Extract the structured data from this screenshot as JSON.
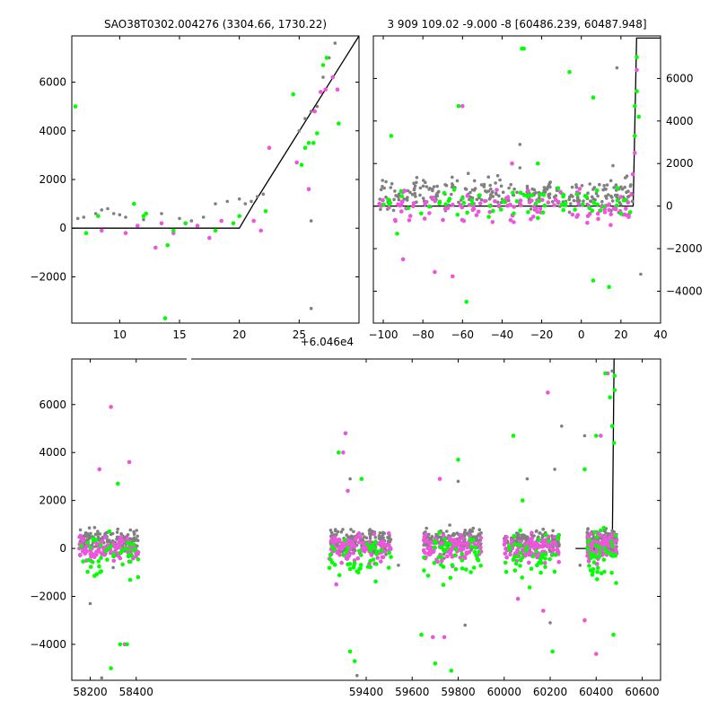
{
  "colors": {
    "green": "#00ff00",
    "magenta": "#ee55dd",
    "gray": "#808080",
    "model": "#000000"
  },
  "chart_data": [
    {
      "id": "top-left",
      "type": "scatter",
      "title": "SAO38T0302.004276 (3304.66, 1730.22)",
      "xlim": [
        6,
        30
      ],
      "ylim": [
        -3900,
        7900
      ],
      "xticks": [
        10,
        15,
        20,
        25
      ],
      "yticks": [
        -2000,
        0,
        2000,
        4000,
        6000
      ],
      "ytick_side": "left",
      "grid": false,
      "model_line": {
        "x": [
          6,
          20,
          21.2,
          30
        ],
        "y": [
          0,
          0,
          1000,
          7900
        ]
      },
      "series": [
        {
          "color": "gray",
          "points": [
            [
              6.5,
              400
            ],
            [
              7,
              450
            ],
            [
              8,
              600
            ],
            [
              8.5,
              750
            ],
            [
              9,
              800
            ],
            [
              9.5,
              600
            ],
            [
              10,
              550
            ],
            [
              10.5,
              450
            ],
            [
              12,
              350
            ],
            [
              13.5,
              600
            ],
            [
              15,
              400
            ],
            [
              16,
              300
            ],
            [
              17,
              450
            ],
            [
              18,
              1000
            ],
            [
              19,
              1100
            ],
            [
              20,
              1200
            ],
            [
              20.5,
              1000
            ],
            [
              21,
              1100
            ],
            [
              21.5,
              1300
            ],
            [
              22,
              1400
            ],
            [
              25,
              4000
            ],
            [
              25.5,
              4500
            ],
            [
              26,
              4800
            ],
            [
              26.5,
              5000
            ],
            [
              27,
              6200
            ],
            [
              27.5,
              7000
            ],
            [
              28,
              7600
            ],
            [
              26,
              -3300
            ],
            [
              26,
              300
            ]
          ]
        },
        {
          "color": "green",
          "points": [
            [
              6.3,
              5000
            ],
            [
              7.2,
              -200
            ],
            [
              8.2,
              500
            ],
            [
              11.2,
              1000
            ],
            [
              12,
              500
            ],
            [
              12.2,
              600
            ],
            [
              13.8,
              -3700
            ],
            [
              14,
              -700
            ],
            [
              14.5,
              -100
            ],
            [
              15.5,
              200
            ],
            [
              18,
              -100
            ],
            [
              19.5,
              200
            ],
            [
              20,
              500
            ],
            [
              22.2,
              700
            ],
            [
              24.5,
              5500
            ],
            [
              25.2,
              2600
            ],
            [
              25.5,
              3300
            ],
            [
              25.8,
              3500
            ],
            [
              26.2,
              3500
            ],
            [
              26.5,
              3900
            ],
            [
              27,
              6700
            ],
            [
              27.3,
              7000
            ],
            [
              28.3,
              4300
            ]
          ]
        },
        {
          "color": "magenta",
          "points": [
            [
              8.5,
              -100
            ],
            [
              10.5,
              -200
            ],
            [
              11.5,
              100
            ],
            [
              13,
              -800
            ],
            [
              13.5,
              200
            ],
            [
              14.5,
              -200
            ],
            [
              15.5,
              200
            ],
            [
              16.5,
              100
            ],
            [
              17.5,
              -400
            ],
            [
              18.5,
              300
            ],
            [
              21.2,
              300
            ],
            [
              21.8,
              -100
            ],
            [
              22.5,
              3300
            ],
            [
              24.8,
              2700
            ],
            [
              25.8,
              1600
            ],
            [
              26.3,
              4800
            ],
            [
              26.8,
              5600
            ],
            [
              27.2,
              5700
            ],
            [
              27.8,
              6200
            ],
            [
              28.2,
              5700
            ]
          ]
        }
      ]
    },
    {
      "id": "top-right",
      "type": "scatter",
      "title": "3 909 109.02 -9.000 -8 [60486.239, 60487.948]",
      "xlim": [
        60355,
        60500
      ],
      "ylim": [
        -5500,
        8000
      ],
      "xticks": [
        60360,
        60380,
        60400,
        60420,
        60440,
        60460,
        60480,
        60500
      ],
      "xtick_offset_label": "+6.046e4",
      "yticks": [
        -4000,
        -2000,
        0,
        2000,
        4000,
        6000
      ],
      "ytick_side": "right",
      "grid": false,
      "model_line": {
        "x": [
          60355,
          60486.2,
          60487.9,
          60500
        ],
        "y": [
          0,
          0,
          7900,
          7900
        ]
      },
      "series": [
        {
          "color": "gray",
          "band": {
            "xmin": 60358,
            "xmax": 60486,
            "ymean": 600,
            "spread": 500,
            "n": 260
          },
          "points": [
            [
              60429,
              2900
            ],
            [
              60429,
              1800
            ],
            [
              60476,
              1900
            ],
            [
              60490,
              -3200
            ],
            [
              60478,
              6500
            ],
            [
              60480,
              900
            ],
            [
              60485,
              1000
            ]
          ]
        },
        {
          "color": "green",
          "band": {
            "xmin": 60358,
            "xmax": 60486,
            "ymean": 200,
            "spread": 500,
            "n": 70
          },
          "points": [
            [
              60364,
              3300
            ],
            [
              60367,
              -1300
            ],
            [
              60369,
              700
            ],
            [
              60398,
              4700
            ],
            [
              60402,
              -4500
            ],
            [
              60430,
              7400
            ],
            [
              60431,
              7400
            ],
            [
              60438,
              2000
            ],
            [
              60454,
              6300
            ],
            [
              60466,
              5100
            ],
            [
              60466,
              -3500
            ],
            [
              60474,
              -3800
            ],
            [
              60487,
              4700
            ],
            [
              60488,
              7000
            ],
            [
              60489,
              4200
            ],
            [
              60488,
              5400
            ],
            [
              60487,
              3300
            ]
          ]
        },
        {
          "color": "magenta",
          "band": {
            "xmin": 60358,
            "xmax": 60486,
            "ymean": -100,
            "spread": 550,
            "n": 120
          },
          "points": [
            [
              60370,
              -2500
            ],
            [
              60386,
              -3100
            ],
            [
              60395,
              -3300
            ],
            [
              60400,
              4700
            ],
            [
              60425,
              2000
            ],
            [
              60486,
              1500
            ],
            [
              60488,
              6400
            ],
            [
              60487,
              2500
            ]
          ]
        }
      ]
    },
    {
      "id": "bottom",
      "type": "scatter",
      "title": "",
      "xlim": [
        58120,
        60680
      ],
      "ylim": [
        -5500,
        7900
      ],
      "xticks": [
        58200,
        58400,
        59400,
        59600,
        59800,
        60000,
        60200,
        60400,
        60600
      ],
      "yticks": [
        -4000,
        -2000,
        0,
        2000,
        4000,
        6000
      ],
      "ytick_side": "left",
      "grid": false,
      "axis_break": [
        58445,
        59200
      ],
      "model_line": {
        "x": [
          60310,
          60470,
          60478,
          60482
        ],
        "y": [
          0,
          0,
          7900,
          7900
        ]
      },
      "seasons": [
        [
          58150,
          58410
        ],
        [
          59240,
          59510
        ],
        [
          59650,
          59900
        ],
        [
          60000,
          60240
        ],
        [
          60360,
          60490
        ]
      ],
      "series": [
        {
          "color": "gray",
          "ymean": 300,
          "spread": 350,
          "per_season": 170,
          "points": [
            [
              58200,
              -2300
            ],
            [
              58250,
              -5400
            ],
            [
              58300,
              -800
            ],
            [
              59330,
              2900
            ],
            [
              59360,
              -5300
            ],
            [
              59540,
              -700
            ],
            [
              59800,
              2800
            ],
            [
              59830,
              -3200
            ],
            [
              60100,
              2900
            ],
            [
              60200,
              -3100
            ],
            [
              60220,
              3300
            ],
            [
              60250,
              5100
            ],
            [
              60330,
              -700
            ],
            [
              60350,
              4700
            ],
            [
              60470,
              7400
            ]
          ]
        },
        {
          "color": "green",
          "ymean": -300,
          "spread": 700,
          "per_season": 45,
          "points": [
            [
              58290,
              -5000
            ],
            [
              58320,
              2700
            ],
            [
              58330,
              -4000
            ],
            [
              58360,
              -4000
            ],
            [
              59280,
              4000
            ],
            [
              59330,
              -4300
            ],
            [
              59380,
              2900
            ],
            [
              59350,
              -4700
            ],
            [
              59640,
              -3600
            ],
            [
              59700,
              -4800
            ],
            [
              59770,
              -5100
            ],
            [
              59800,
              3700
            ],
            [
              60040,
              4700
            ],
            [
              60080,
              2000
            ],
            [
              60210,
              -4300
            ],
            [
              60350,
              3300
            ],
            [
              60400,
              4700
            ],
            [
              60440,
              7300
            ],
            [
              60460,
              6300
            ],
            [
              60470,
              5100
            ],
            [
              60475,
              -3600
            ],
            [
              60478,
              4400
            ],
            [
              60480,
              6600
            ],
            [
              60480,
              7200
            ]
          ]
        },
        {
          "color": "magenta",
          "ymean": 0,
          "spread": 400,
          "per_season": 100,
          "points": [
            [
              58290,
              5900
            ],
            [
              58240,
              3300
            ],
            [
              58370,
              3600
            ],
            [
              58350,
              -4000
            ],
            [
              59270,
              -1500
            ],
            [
              59310,
              4800
            ],
            [
              59320,
              2400
            ],
            [
              59300,
              4000
            ],
            [
              59690,
              -3700
            ],
            [
              59720,
              2900
            ],
            [
              59740,
              -3700
            ],
            [
              60060,
              -2100
            ],
            [
              60190,
              6500
            ],
            [
              60170,
              -2600
            ],
            [
              60350,
              -3000
            ],
            [
              60400,
              -4400
            ],
            [
              60420,
              4700
            ],
            [
              60450,
              7300
            ]
          ]
        }
      ]
    }
  ]
}
